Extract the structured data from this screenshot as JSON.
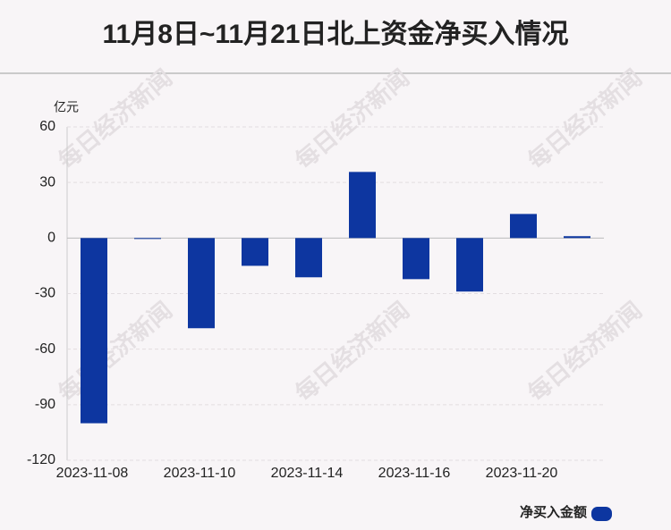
{
  "chart_data": {
    "type": "bar",
    "title": "11月8日~11月21日北上资金净买入情况",
    "y_label": "亿元",
    "watermark": "每日经济新闻",
    "categories": [
      "2023-11-08",
      null,
      "2023-11-10",
      null,
      "2023-11-14",
      null,
      "2023-11-16",
      null,
      "2023-11-20",
      null
    ],
    "series": [
      {
        "name": "净买入金额",
        "color": "#0d36a0",
        "values": [
          -100,
          -0.5,
          -48.7,
          -15,
          -21.2,
          35.7,
          -22.2,
          -28.9,
          13,
          1
        ]
      }
    ],
    "ylim": [
      -120,
      60
    ],
    "yticks": [
      -120,
      -90,
      -60,
      -30,
      0,
      30,
      60
    ],
    "grid": true
  }
}
